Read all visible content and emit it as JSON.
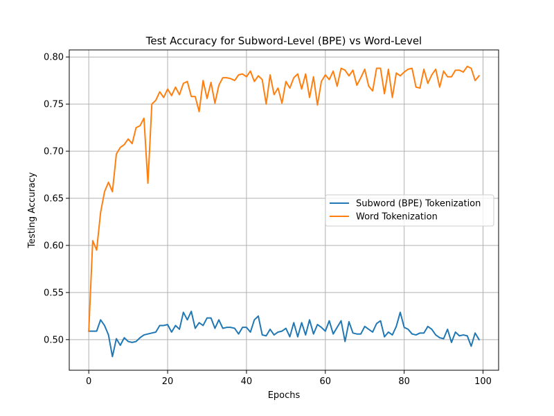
{
  "chart_data": {
    "type": "line",
    "title": "Test Accuracy for Subword-Level (BPE) vs Word-Level",
    "xlabel": "Epochs",
    "ylabel": "Testing Accuracy",
    "xlim": [
      -4.95,
      103.95
    ],
    "ylim": [
      0.4675,
      0.8075
    ],
    "xticks": [
      0,
      20,
      40,
      60,
      80,
      100
    ],
    "xtick_labels": [
      "0",
      "20",
      "40",
      "60",
      "80",
      "100"
    ],
    "yticks": [
      0.5,
      0.55,
      0.6,
      0.65,
      0.7,
      0.75,
      0.8
    ],
    "ytick_labels": [
      "0.50",
      "0.55",
      "0.60",
      "0.65",
      "0.70",
      "0.75",
      "0.80"
    ],
    "grid": true,
    "legend_position": "center-right",
    "x": [
      0,
      1,
      2,
      3,
      4,
      5,
      6,
      7,
      8,
      9,
      10,
      11,
      12,
      13,
      14,
      15,
      16,
      17,
      18,
      19,
      20,
      21,
      22,
      23,
      24,
      25,
      26,
      27,
      28,
      29,
      30,
      31,
      32,
      33,
      34,
      35,
      36,
      37,
      38,
      39,
      40,
      41,
      42,
      43,
      44,
      45,
      46,
      47,
      48,
      49,
      50,
      51,
      52,
      53,
      54,
      55,
      56,
      57,
      58,
      59,
      60,
      61,
      62,
      63,
      64,
      65,
      66,
      67,
      68,
      69,
      70,
      71,
      72,
      73,
      74,
      75,
      76,
      77,
      78,
      79,
      80,
      81,
      82,
      83,
      84,
      85,
      86,
      87,
      88,
      89,
      90,
      91,
      92,
      93,
      94,
      95,
      96,
      97,
      98,
      99
    ],
    "series": [
      {
        "name": "Subword (BPE) Tokenization",
        "color": "#1f77b4",
        "values": [
          0.509,
          0.509,
          0.509,
          0.521,
          0.515,
          0.505,
          0.482,
          0.501,
          0.494,
          0.502,
          0.498,
          0.497,
          0.498,
          0.502,
          0.505,
          0.506,
          0.507,
          0.508,
          0.515,
          0.515,
          0.516,
          0.508,
          0.515,
          0.511,
          0.529,
          0.521,
          0.53,
          0.512,
          0.518,
          0.515,
          0.523,
          0.523,
          0.512,
          0.521,
          0.512,
          0.513,
          0.513,
          0.512,
          0.506,
          0.513,
          0.513,
          0.508,
          0.521,
          0.525,
          0.505,
          0.504,
          0.511,
          0.505,
          0.508,
          0.509,
          0.512,
          0.503,
          0.518,
          0.503,
          0.518,
          0.505,
          0.521,
          0.506,
          0.516,
          0.513,
          0.509,
          0.52,
          0.506,
          0.513,
          0.52,
          0.498,
          0.519,
          0.507,
          0.506,
          0.506,
          0.514,
          0.511,
          0.508,
          0.517,
          0.52,
          0.503,
          0.508,
          0.505,
          0.514,
          0.529,
          0.513,
          0.511,
          0.506,
          0.505,
          0.507,
          0.507,
          0.514,
          0.511,
          0.505,
          0.502,
          0.501,
          0.511,
          0.497,
          0.508,
          0.504,
          0.505,
          0.504,
          0.493,
          0.507,
          0.5
        ]
      },
      {
        "name": "Word Tokenization",
        "color": "#ff7f0e",
        "values": [
          0.509,
          0.605,
          0.595,
          0.635,
          0.657,
          0.667,
          0.657,
          0.697,
          0.704,
          0.707,
          0.713,
          0.708,
          0.725,
          0.727,
          0.735,
          0.666,
          0.75,
          0.754,
          0.763,
          0.757,
          0.766,
          0.759,
          0.768,
          0.76,
          0.772,
          0.774,
          0.758,
          0.758,
          0.742,
          0.775,
          0.756,
          0.773,
          0.751,
          0.77,
          0.778,
          0.778,
          0.777,
          0.775,
          0.781,
          0.782,
          0.779,
          0.785,
          0.774,
          0.78,
          0.776,
          0.75,
          0.781,
          0.76,
          0.767,
          0.751,
          0.774,
          0.767,
          0.778,
          0.782,
          0.766,
          0.782,
          0.757,
          0.779,
          0.749,
          0.774,
          0.781,
          0.776,
          0.785,
          0.769,
          0.788,
          0.786,
          0.78,
          0.786,
          0.77,
          0.778,
          0.787,
          0.769,
          0.764,
          0.788,
          0.788,
          0.761,
          0.787,
          0.757,
          0.783,
          0.78,
          0.784,
          0.787,
          0.788,
          0.768,
          0.767,
          0.787,
          0.772,
          0.781,
          0.787,
          0.768,
          0.785,
          0.779,
          0.779,
          0.786,
          0.786,
          0.784,
          0.79,
          0.788,
          0.775,
          0.78
        ]
      }
    ]
  }
}
